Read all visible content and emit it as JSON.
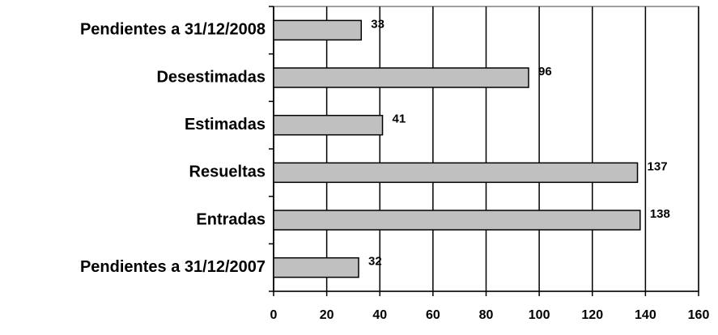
{
  "chart_data": {
    "type": "bar",
    "orientation": "horizontal",
    "categories": [
      "Pendientes a 31/12/2008",
      "Desestimadas",
      "Estimadas",
      "Resueltas",
      "Entradas",
      "Pendientes a 31/12/2007"
    ],
    "values": [
      33,
      96,
      41,
      137,
      138,
      32
    ],
    "color": "#c0c0c0",
    "xlim": [
      0,
      160
    ],
    "xticks": [
      0,
      20,
      40,
      60,
      80,
      100,
      120,
      140,
      160
    ],
    "grid": true
  }
}
